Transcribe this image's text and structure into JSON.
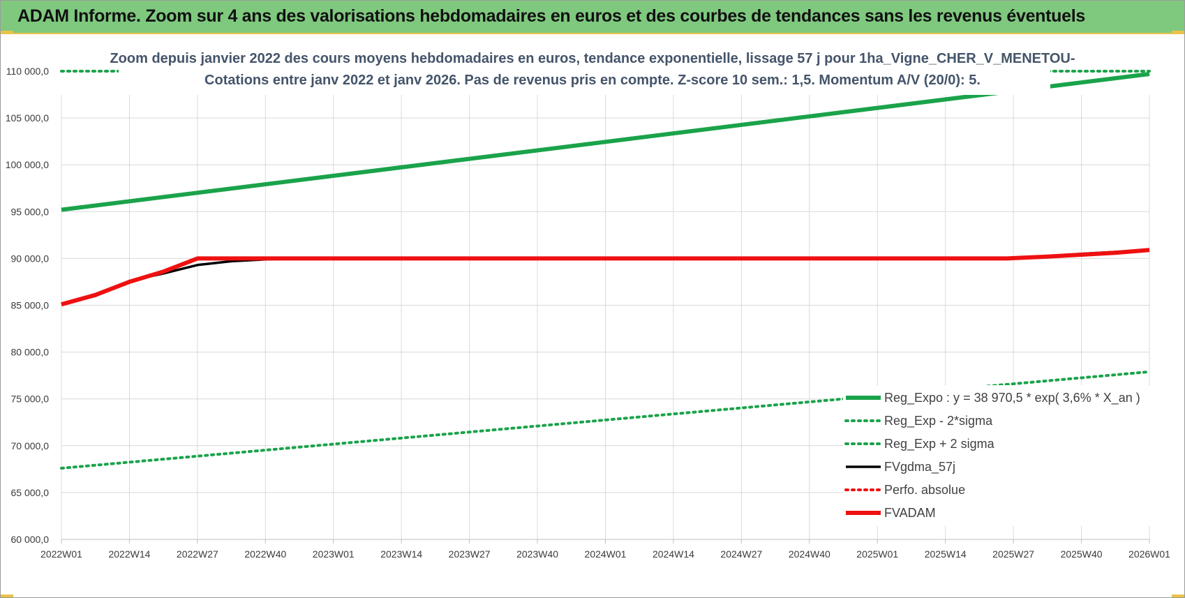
{
  "header": {
    "title": "ADAM Informe. Zoom sur 4 ans des valorisations hebdomadaires en euros et des courbes de tendances sans les revenus éventuels"
  },
  "colors": {
    "header_bg": "#7fc97f",
    "accent": "#e8c34a",
    "green": "#1aa34a",
    "red": "#ee1111",
    "black": "#000000",
    "title_text": "#44546a"
  },
  "chart_data": {
    "type": "line",
    "title_lines": [
      "Zoom depuis janvier 2022 des cours moyens hebdomadaires en euros, tendance exponentielle, lissage 57 j pour 1ha_Vigne_CHER_V_MENETOU-",
      "Cotations entre janv 2022 et janv 2026. Pas de revenus pris en compte. Z-score 10 sem.: 1,5. Momentum A/V (20/0): 5."
    ],
    "categories": [
      "2022W01",
      "2022W14",
      "2022W27",
      "2022W40",
      "2023W01",
      "2023W14",
      "2023W27",
      "2023W40",
      "2024W01",
      "2024W14",
      "2024W27",
      "2024W40",
      "2025W01",
      "2025W14",
      "2025W27",
      "2025W40",
      "2026W01"
    ],
    "y_ticks": [
      "60 000,0",
      "65 000,0",
      "70 000,0",
      "75 000,0",
      "80 000,0",
      "85 000,0",
      "90 000,0",
      "95 000,0",
      "100 000,0",
      "105 000,0",
      "110 000,0"
    ],
    "ylim": [
      60000,
      110000
    ],
    "grid": true,
    "legend_position": "bottom-right",
    "series": [
      {
        "name": "Reg_Expo : y = 38 970,5 * exp( 3,6% *  X_an )",
        "style": "solid-thick",
        "color": "#1aa34a",
        "points": [
          [
            0,
            95200
          ],
          [
            16,
            109700
          ]
        ]
      },
      {
        "name": "Reg_Exp - 2*sigma",
        "style": "dotted",
        "color": "#1aa34a",
        "points": [
          [
            0,
            67600
          ],
          [
            16,
            77900
          ]
        ]
      },
      {
        "name": "Reg_Exp + 2 sigma",
        "style": "dotted",
        "color": "#1aa34a",
        "points": [
          [
            0,
            110000
          ],
          [
            16,
            110000
          ]
        ]
      },
      {
        "name": "FVgdma_57j",
        "style": "solid",
        "color": "#000000",
        "points": [
          [
            0,
            85100
          ],
          [
            0.5,
            86000
          ],
          [
            1,
            87600
          ],
          [
            1.5,
            88400
          ],
          [
            2,
            89300
          ],
          [
            2.5,
            89700
          ],
          [
            3,
            89900
          ],
          [
            3.5,
            90000
          ],
          [
            13.5,
            90000
          ],
          [
            14,
            90100
          ],
          [
            14.5,
            90200
          ],
          [
            15,
            90500
          ],
          [
            15.5,
            90700
          ],
          [
            16,
            90900
          ]
        ]
      },
      {
        "name": "Perfo. absolue",
        "style": "dotted",
        "color": "#ee1111",
        "points": []
      },
      {
        "name": "FVADAM",
        "style": "solid-thick",
        "color": "#ee1111",
        "points": [
          [
            0,
            85100
          ],
          [
            0.5,
            86100
          ],
          [
            1,
            87500
          ],
          [
            1.5,
            88600
          ],
          [
            2,
            90000
          ],
          [
            13.9,
            90000
          ],
          [
            14.5,
            90200
          ],
          [
            15,
            90400
          ],
          [
            15.5,
            90600
          ],
          [
            16,
            90900
          ]
        ]
      }
    ]
  }
}
